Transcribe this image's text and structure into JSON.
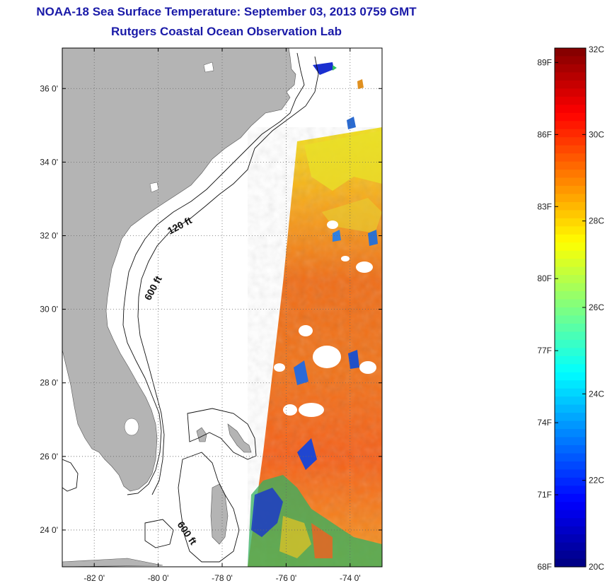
{
  "header": {
    "title": "NOAA-18 Sea Surface Temperature:  September 03, 2013 0759 GMT",
    "subtitle": "Rutgers Coastal Ocean Observation Lab"
  },
  "map": {
    "lat_range": [
      23.0,
      37.1
    ],
    "lon_range": [
      -83.0,
      -73.0
    ],
    "lat_ticks": [
      "36 0'",
      "34 0'",
      "32 0'",
      "30 0'",
      "28 0'",
      "26 0'",
      "24 0'"
    ],
    "lat_values": [
      36,
      34,
      32,
      30,
      28,
      26,
      24
    ],
    "lon_ticks": [
      "-82 0'",
      "-80 0'",
      "-78 0'",
      "-76 0'",
      "-74 0'"
    ],
    "lon_values": [
      -82,
      -80,
      -78,
      -76,
      -74
    ],
    "contour_labels": [
      "120 ft",
      "600 ft",
      "600 ft"
    ],
    "land_color": "#b4b4b4",
    "grid": "dotted"
  },
  "colorbar": {
    "fahrenheit_labels": [
      "89F",
      "86F",
      "83F",
      "80F",
      "77F",
      "74F",
      "71F",
      "68F"
    ],
    "celsius_labels": [
      "32C",
      "30C",
      "28C",
      "26C",
      "24C",
      "22C",
      "20C"
    ],
    "range_c": [
      20,
      32
    ],
    "colormap": "jet"
  }
}
